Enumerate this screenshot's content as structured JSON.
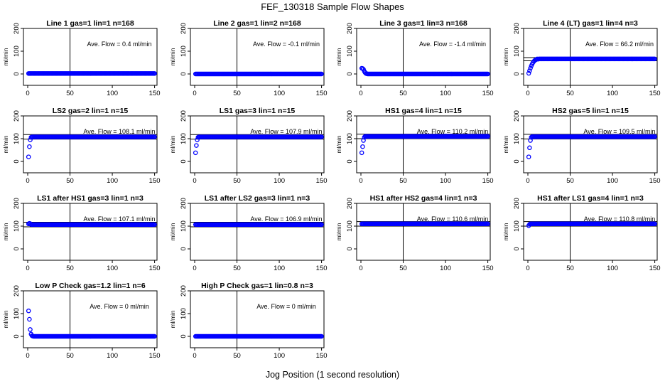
{
  "figure": {
    "title": "FEF_130318  Sample Flow Shapes",
    "xlabel": "Jog Position (1 second resolution)"
  },
  "chart_data": [
    {
      "type": "scatter",
      "title": "Line 1 gas=1 lin=1 n=168",
      "annotation": "Ave. Flow =  0.4  ml/min",
      "ylabel": "ml/min",
      "xlim": [
        0,
        150
      ],
      "ylim": [
        -50,
        200
      ],
      "xticks": [
        0,
        50,
        100,
        150
      ],
      "yticks": [
        0,
        100,
        200
      ],
      "vline": 50,
      "hlines": [],
      "marker_color": "#0000ff",
      "x": [
        1,
        150
      ],
      "y": [
        2,
        2
      ],
      "early_points": []
    },
    {
      "type": "scatter",
      "title": "Line 2 gas=1 lin=2 n=168",
      "annotation": "Ave. Flow =  -0.1  ml/min",
      "ylabel": "ml/min",
      "xlim": [
        0,
        150
      ],
      "ylim": [
        -50,
        200
      ],
      "xticks": [
        0,
        50,
        100,
        150
      ],
      "yticks": [
        0,
        100,
        200
      ],
      "vline": 50,
      "hlines": [],
      "marker_color": "#0000ff",
      "x": [
        1,
        150
      ],
      "y": [
        0,
        0
      ],
      "early_points": []
    },
    {
      "type": "scatter",
      "title": "Line 3 gas=1 lin=3 n=168",
      "annotation": "Ave. Flow =  -1.4  ml/min",
      "ylabel": "ml/min",
      "xlim": [
        0,
        150
      ],
      "ylim": [
        -50,
        200
      ],
      "xticks": [
        0,
        50,
        100,
        150
      ],
      "yticks": [
        0,
        100,
        200
      ],
      "vline": 50,
      "hlines": [],
      "marker_color": "#0000ff",
      "x": [
        1,
        150
      ],
      "y": [
        0,
        0
      ],
      "early_points": [
        [
          1,
          25
        ],
        [
          2,
          24
        ],
        [
          3,
          20
        ],
        [
          4,
          12
        ],
        [
          5,
          6
        ],
        [
          6,
          2
        ],
        [
          7,
          1
        ]
      ]
    },
    {
      "type": "scatter",
      "title": "Line 4 (LT) gas=1 lin=4 n=3",
      "annotation": "Ave. Flow =  66.2  ml/min",
      "ylabel": "ml/min",
      "xlim": [
        0,
        150
      ],
      "ylim": [
        -50,
        200
      ],
      "xticks": [
        0,
        50,
        100,
        150
      ],
      "yticks": [
        0,
        100,
        200
      ],
      "vline": 50,
      "hlines": [
        72,
        58
      ],
      "marker_color": "#0000ff",
      "x": [
        1,
        150
      ],
      "y": [
        66,
        66
      ],
      "early_points": [
        [
          1,
          3
        ],
        [
          2,
          14
        ],
        [
          3,
          25
        ],
        [
          4,
          35
        ],
        [
          5,
          43
        ],
        [
          6,
          50
        ],
        [
          7,
          55
        ],
        [
          8,
          59
        ],
        [
          9,
          62
        ],
        [
          10,
          64
        ],
        [
          12,
          65
        ]
      ]
    },
    {
      "type": "scatter",
      "title": "LS2 gas=2 lin=1 n=15",
      "annotation": "Ave. Flow =  108.1  ml/min",
      "ylabel": "ml/min",
      "xlim": [
        0,
        150
      ],
      "ylim": [
        -50,
        200
      ],
      "xticks": [
        0,
        50,
        100,
        150
      ],
      "yticks": [
        0,
        100,
        200
      ],
      "vline": 50,
      "hlines": [
        118,
        98
      ],
      "marker_color": "#0000ff",
      "x": [
        1,
        150
      ],
      "y": [
        108,
        108
      ],
      "early_points": [
        [
          1,
          20
        ],
        [
          2,
          65
        ],
        [
          3,
          95
        ],
        [
          4,
          106
        ],
        [
          5,
          108
        ]
      ]
    },
    {
      "type": "scatter",
      "title": "LS1 gas=3 lin=1 n=15",
      "annotation": "Ave. Flow =  107.9  ml/min",
      "ylabel": "ml/min",
      "xlim": [
        0,
        150
      ],
      "ylim": [
        -50,
        200
      ],
      "xticks": [
        0,
        50,
        100,
        150
      ],
      "yticks": [
        0,
        100,
        200
      ],
      "vline": 50,
      "hlines": [
        118,
        98
      ],
      "marker_color": "#0000ff",
      "x": [
        1,
        150
      ],
      "y": [
        108,
        108
      ],
      "early_points": [
        [
          1,
          38
        ],
        [
          2,
          70
        ],
        [
          3,
          95
        ],
        [
          4,
          106
        ],
        [
          5,
          108
        ]
      ]
    },
    {
      "type": "scatter",
      "title": "HS1 gas=4 lin=1 n=15",
      "annotation": "Ave. Flow =  110.2  ml/min",
      "ylabel": "ml/min",
      "xlim": [
        0,
        150
      ],
      "ylim": [
        -50,
        200
      ],
      "xticks": [
        0,
        50,
        100,
        150
      ],
      "yticks": [
        0,
        100,
        200
      ],
      "vline": 50,
      "hlines": [
        120,
        100
      ],
      "marker_color": "#0000ff",
      "x": [
        1,
        150
      ],
      "y": [
        110,
        110
      ],
      "early_points": [
        [
          1,
          38
        ],
        [
          2,
          65
        ],
        [
          3,
          92
        ],
        [
          4,
          106
        ],
        [
          5,
          110
        ]
      ]
    },
    {
      "type": "scatter",
      "title": "HS2 gas=5 lin=1 n=15",
      "annotation": "Ave. Flow =  109.5  ml/min",
      "ylabel": "ml/min",
      "xlim": [
        0,
        150
      ],
      "ylim": [
        -50,
        200
      ],
      "xticks": [
        0,
        50,
        100,
        150
      ],
      "yticks": [
        0,
        100,
        200
      ],
      "vline": 50,
      "hlines": [
        119,
        99
      ],
      "marker_color": "#0000ff",
      "x": [
        1,
        150
      ],
      "y": [
        109,
        109
      ],
      "early_points": [
        [
          1,
          20
        ],
        [
          2,
          60
        ],
        [
          3,
          92
        ],
        [
          4,
          106
        ],
        [
          5,
          109
        ]
      ]
    },
    {
      "type": "scatter",
      "title": "LS1 after HS1 gas=3 lin=1 n=3",
      "annotation": "Ave. Flow =  107.1  ml/min",
      "ylabel": "ml/min",
      "xlim": [
        0,
        150
      ],
      "ylim": [
        -50,
        200
      ],
      "xticks": [
        0,
        50,
        100,
        150
      ],
      "yticks": [
        0,
        100,
        200
      ],
      "vline": 50,
      "hlines": [
        117,
        97
      ],
      "marker_color": "#0000ff",
      "x": [
        1,
        150
      ],
      "y": [
        107,
        107
      ],
      "early_points": [
        [
          1,
          110
        ],
        [
          2,
          112
        ],
        [
          3,
          111
        ]
      ]
    },
    {
      "type": "scatter",
      "title": "LS1 after LS2 gas=3 lin=1 n=3",
      "annotation": "Ave. Flow =  106.9  ml/min",
      "ylabel": "ml/min",
      "xlim": [
        0,
        150
      ],
      "ylim": [
        -50,
        200
      ],
      "xticks": [
        0,
        50,
        100,
        150
      ],
      "yticks": [
        0,
        100,
        200
      ],
      "vline": 50,
      "hlines": [
        117,
        97
      ],
      "marker_color": "#0000ff",
      "x": [
        1,
        150
      ],
      "y": [
        107,
        107
      ],
      "early_points": []
    },
    {
      "type": "scatter",
      "title": "HS1 after HS2 gas=4 lin=1 n=3",
      "annotation": "Ave. Flow =  110.6  ml/min",
      "ylabel": "ml/min",
      "xlim": [
        0,
        150
      ],
      "ylim": [
        -50,
        200
      ],
      "xticks": [
        0,
        50,
        100,
        150
      ],
      "yticks": [
        0,
        100,
        200
      ],
      "vline": 50,
      "hlines": [
        120,
        100
      ],
      "marker_color": "#0000ff",
      "x": [
        1,
        150
      ],
      "y": [
        110,
        110
      ],
      "early_points": []
    },
    {
      "type": "scatter",
      "title": "HS1 after LS1 gas=4 lin=1 n=3",
      "annotation": "Ave. Flow =  110.8  ml/min",
      "ylabel": "ml/min",
      "xlim": [
        0,
        150
      ],
      "ylim": [
        -50,
        200
      ],
      "xticks": [
        0,
        50,
        100,
        150
      ],
      "yticks": [
        0,
        100,
        200
      ],
      "vline": 50,
      "hlines": [
        120,
        100
      ],
      "marker_color": "#0000ff",
      "x": [
        1,
        150
      ],
      "y": [
        110,
        110
      ],
      "early_points": [
        [
          1,
          102
        ],
        [
          2,
          108
        ]
      ]
    },
    {
      "type": "scatter",
      "title": "Low P Check gas=1.2 lin=1 n=6",
      "annotation": "Ave. Flow =  0  ml/min",
      "ylabel": "ml/min",
      "xlim": [
        0,
        150
      ],
      "ylim": [
        -50,
        200
      ],
      "xticks": [
        0,
        50,
        100,
        150
      ],
      "yticks": [
        0,
        100,
        200
      ],
      "vline": 50,
      "hlines": [],
      "marker_color": "#0000ff",
      "x": [
        1,
        150
      ],
      "y": [
        0,
        0
      ],
      "early_points": [
        [
          1,
          112
        ],
        [
          2,
          75
        ],
        [
          3,
          30
        ],
        [
          4,
          10
        ],
        [
          5,
          3
        ],
        [
          6,
          1
        ]
      ]
    },
    {
      "type": "scatter",
      "title": "High P Check gas=1 lin=0.8 n=3",
      "annotation": "Ave. Flow =  0  ml/min",
      "ylabel": "ml/min",
      "xlim": [
        0,
        150
      ],
      "ylim": [
        -50,
        200
      ],
      "xticks": [
        0,
        50,
        100,
        150
      ],
      "yticks": [
        0,
        100,
        200
      ],
      "vline": 50,
      "hlines": [],
      "marker_color": "#0000ff",
      "x": [
        1,
        150
      ],
      "y": [
        0,
        0
      ],
      "early_points": []
    }
  ]
}
